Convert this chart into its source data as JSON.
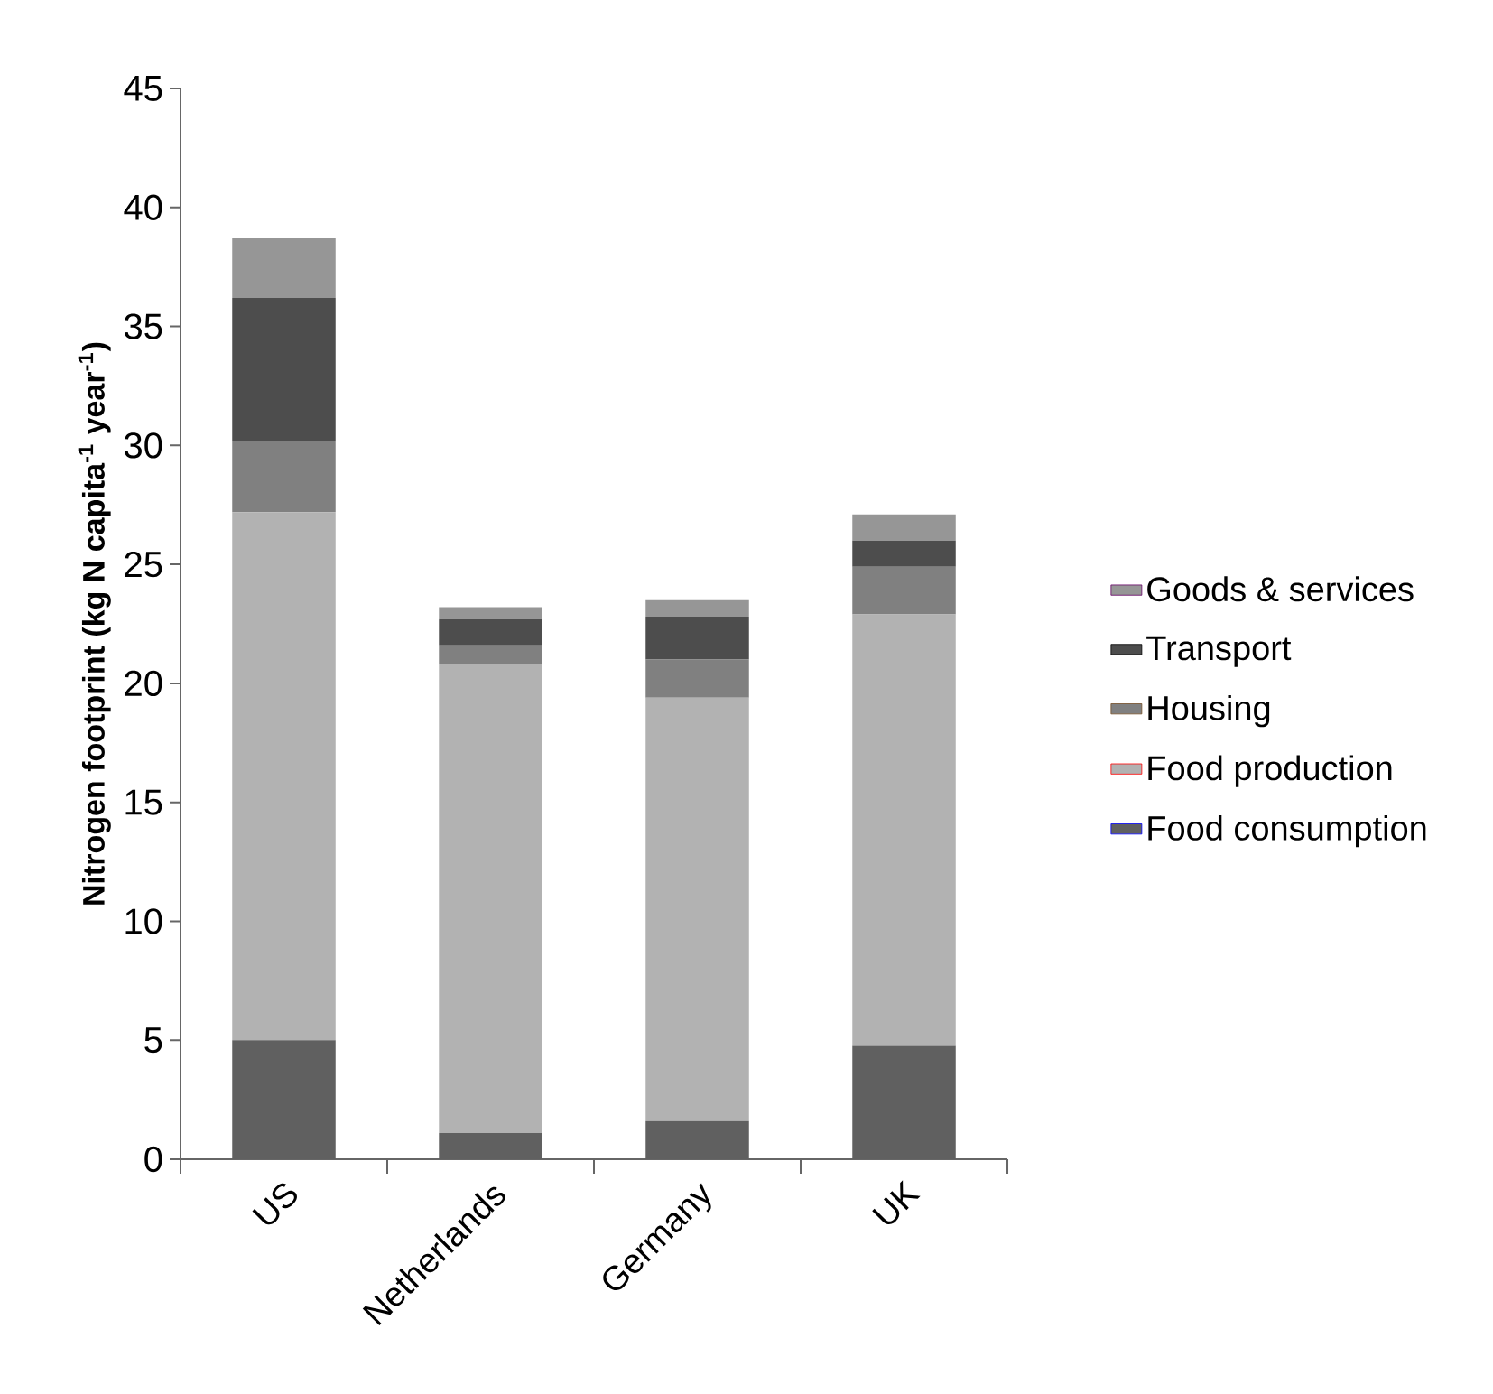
{
  "chart_data": {
    "type": "bar",
    "stacked": true,
    "ylabel": "Nitrogen footprint (kg N capita$^{-1}$ year$^{-1}$)",
    "categories": [
      "US",
      "Netherlands",
      "Germany",
      "UK"
    ],
    "ylim": [
      0,
      45
    ],
    "yticks": [
      0,
      5,
      10,
      15,
      20,
      25,
      30,
      35,
      40,
      45
    ],
    "legend": "right",
    "grid": false,
    "series": [
      {
        "name": "Food consumption",
        "color": "#606060",
        "values": [
          5.0,
          1.1,
          1.6,
          4.8
        ]
      },
      {
        "name": "Food production",
        "color": "#b2b2b2",
        "values": [
          22.2,
          19.7,
          17.8,
          18.1
        ]
      },
      {
        "name": "Housing",
        "color": "#808080",
        "values": [
          3.0,
          0.8,
          1.6,
          2.0
        ]
      },
      {
        "name": "Transport",
        "color": "#4d4d4d",
        "values": [
          6.0,
          1.1,
          1.8,
          1.1
        ]
      },
      {
        "name": "Goods & services",
        "color": "#969696",
        "values": [
          2.5,
          0.5,
          0.7,
          1.1
        ]
      }
    ]
  }
}
